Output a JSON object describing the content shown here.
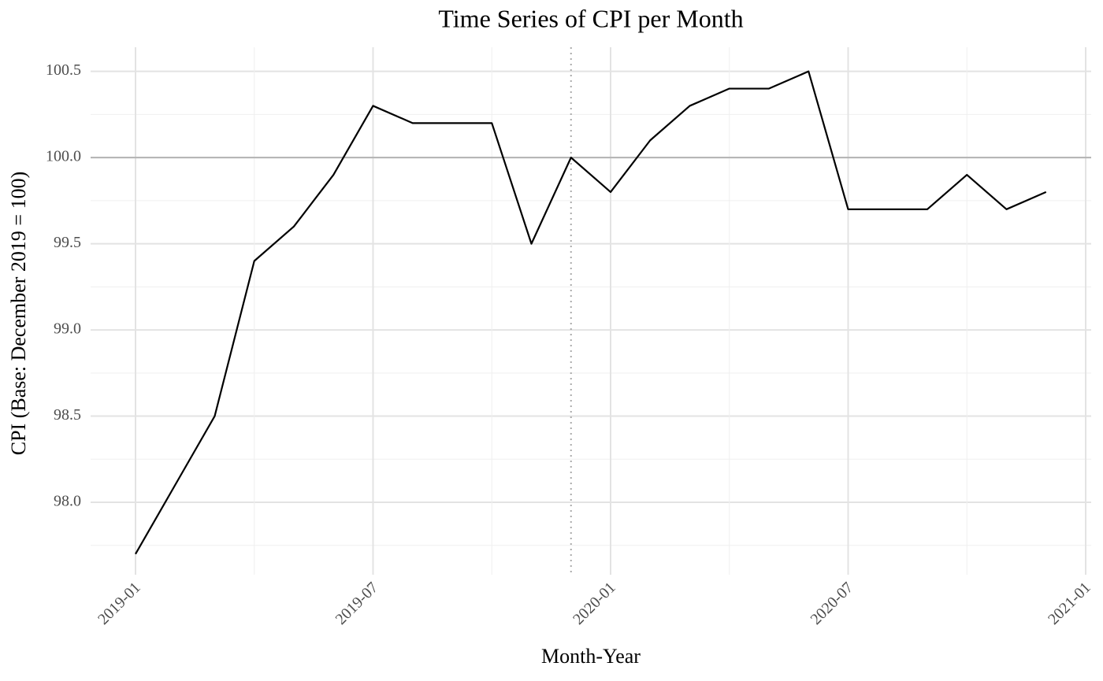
{
  "chart_data": {
    "type": "line",
    "title": "Time Series of CPI per Month",
    "x_label": "Month-Year",
    "y_label": "CPI (Base: December 2019 = 100)",
    "x": [
      "2019-01",
      "2019-02",
      "2019-03",
      "2019-04",
      "2019-05",
      "2019-06",
      "2019-07",
      "2019-08",
      "2019-09",
      "2019-10",
      "2019-11",
      "2019-12",
      "2020-01",
      "2020-02",
      "2020-03",
      "2020-04",
      "2020-05",
      "2020-06",
      "2020-07",
      "2020-08",
      "2020-09",
      "2020-10",
      "2020-11",
      "2020-12"
    ],
    "series": [
      {
        "name": "CPI",
        "color": "#000000",
        "values": [
          97.7,
          98.1,
          98.5,
          99.4,
          99.6,
          99.9,
          100.3,
          100.2,
          100.2,
          100.2,
          99.5,
          100.0,
          99.8,
          100.1,
          100.3,
          100.4,
          100.4,
          100.5,
          99.7,
          99.7,
          99.7,
          99.9,
          99.7,
          99.8
        ]
      }
    ],
    "xlim": [
      "2019-01",
      "2021-01"
    ],
    "xticks": [
      "2019-01",
      "2019-07",
      "2020-01",
      "2020-07",
      "2021-01"
    ],
    "ylim": [
      97.58,
      100.64
    ],
    "yticks": [
      {
        "value": 98,
        "label": "98.0"
      },
      98.5,
      {
        "value": 99,
        "label": "99.0"
      },
      99.5,
      {
        "value": 100,
        "label": "100.0"
      },
      100.5
    ],
    "hline": 100,
    "vline": "2019-12",
    "grid": true
  }
}
